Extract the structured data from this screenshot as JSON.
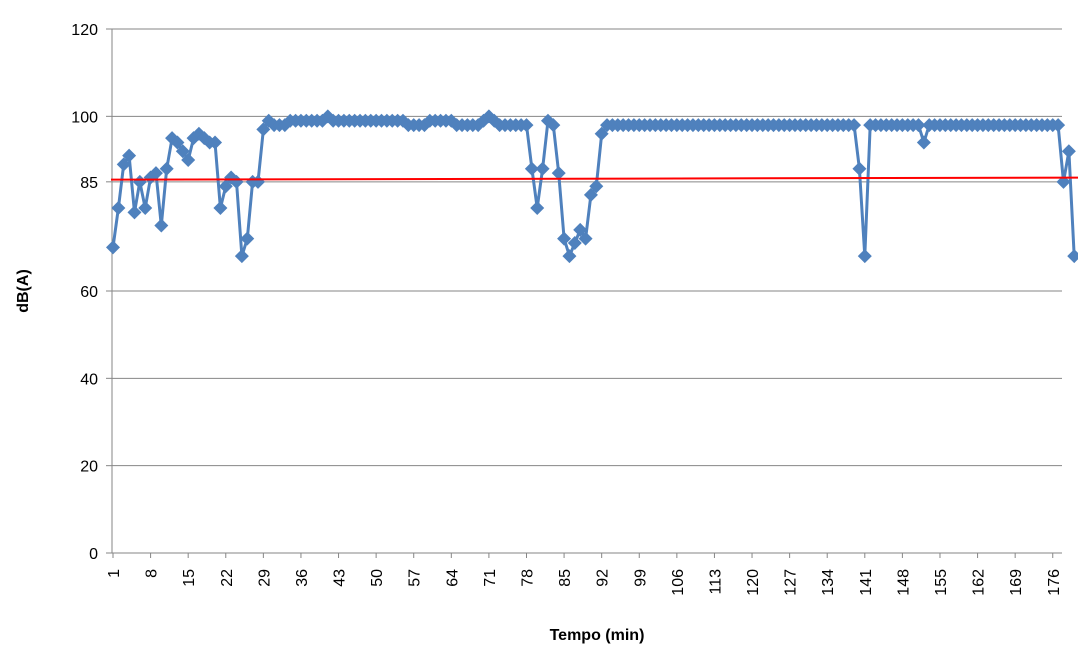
{
  "chart_data": {
    "type": "line",
    "xlabel": "Tempo (min)",
    "ylabel": "dB(A)",
    "ylim": [
      0,
      120
    ],
    "yticks": [
      0,
      20,
      40,
      60,
      85,
      100,
      120
    ],
    "xtick_labels": [
      "1",
      "8",
      "15",
      "22",
      "29",
      "36",
      "43",
      "50",
      "57",
      "64",
      "71",
      "78",
      "85",
      "92",
      "99",
      "106",
      "113",
      "120",
      "127",
      "134",
      "141",
      "148",
      "155",
      "162",
      "169",
      "176"
    ],
    "grid": true,
    "legend": "none",
    "reference_line": {
      "value": 85.5,
      "color": "#ff0000"
    },
    "series": [
      {
        "color": "#4f81bd",
        "x": [
          1,
          2,
          3,
          4,
          5,
          6,
          7,
          8,
          9,
          10,
          11,
          12,
          13,
          14,
          15,
          16,
          17,
          18,
          19,
          20,
          21,
          22,
          23,
          24,
          25,
          26,
          27,
          28,
          29,
          30,
          31,
          32,
          33,
          34,
          35,
          36,
          37,
          38,
          39,
          40,
          41,
          42,
          43,
          44,
          45,
          46,
          47,
          48,
          49,
          50,
          51,
          52,
          53,
          54,
          55,
          56,
          57,
          58,
          59,
          60,
          61,
          62,
          63,
          64,
          65,
          66,
          67,
          68,
          69,
          70,
          71,
          72,
          73,
          74,
          75,
          76,
          77,
          78,
          79,
          80,
          81,
          82,
          83,
          84,
          85,
          86,
          87,
          88,
          89,
          90,
          91,
          92,
          93,
          94,
          95,
          96,
          97,
          98,
          99,
          100,
          101,
          102,
          103,
          104,
          105,
          106,
          107,
          108,
          109,
          110,
          111,
          112,
          113,
          114,
          115,
          116,
          117,
          118,
          119,
          120,
          121,
          122,
          123,
          124,
          125,
          126,
          127,
          128,
          129,
          130,
          131,
          132,
          133,
          134,
          135,
          136,
          137,
          138,
          139,
          140,
          141,
          142,
          143,
          144,
          145,
          146,
          147,
          148,
          149,
          150,
          151,
          152,
          153,
          154,
          155,
          156,
          157,
          158,
          159,
          160,
          161,
          162,
          163,
          164,
          165,
          166,
          167,
          168,
          169,
          170,
          171,
          172,
          173,
          174,
          175,
          176,
          177,
          178,
          179,
          180
        ],
        "values": [
          70,
          79,
          89,
          91,
          78,
          85,
          79,
          86,
          87,
          75,
          88,
          95,
          94,
          92,
          90,
          95,
          96,
          95,
          94,
          94,
          79,
          84,
          86,
          85,
          68,
          72,
          85,
          85,
          97,
          99,
          98,
          98,
          98,
          99,
          99,
          99,
          99,
          99,
          99,
          99,
          100,
          99,
          99,
          99,
          99,
          99,
          99,
          99,
          99,
          99,
          99,
          99,
          99,
          99,
          99,
          98,
          98,
          98,
          98,
          99,
          99,
          99,
          99,
          99,
          98,
          98,
          98,
          98,
          98,
          99,
          100,
          99,
          98,
          98,
          98,
          98,
          98,
          98,
          88,
          79,
          88,
          99,
          98,
          87,
          72,
          68,
          71,
          74,
          72,
          82,
          84,
          96,
          98,
          98,
          98,
          98,
          98,
          98,
          98,
          98,
          98,
          98,
          98,
          98,
          98,
          98,
          98,
          98,
          98,
          98,
          98,
          98,
          98,
          98,
          98,
          98,
          98,
          98,
          98,
          98,
          98,
          98,
          98,
          98,
          98,
          98,
          98,
          98,
          98,
          98,
          98,
          98,
          98,
          98,
          98,
          98,
          98,
          98,
          98,
          88,
          68,
          98,
          98,
          98,
          98,
          98,
          98,
          98,
          98,
          98,
          98,
          94,
          98,
          98,
          98,
          98,
          98,
          98,
          98,
          98,
          98,
          98,
          98,
          98,
          98,
          98,
          98,
          98,
          98,
          98,
          98,
          98,
          98,
          98,
          98,
          98,
          98,
          85,
          92,
          68
        ]
      }
    ]
  }
}
